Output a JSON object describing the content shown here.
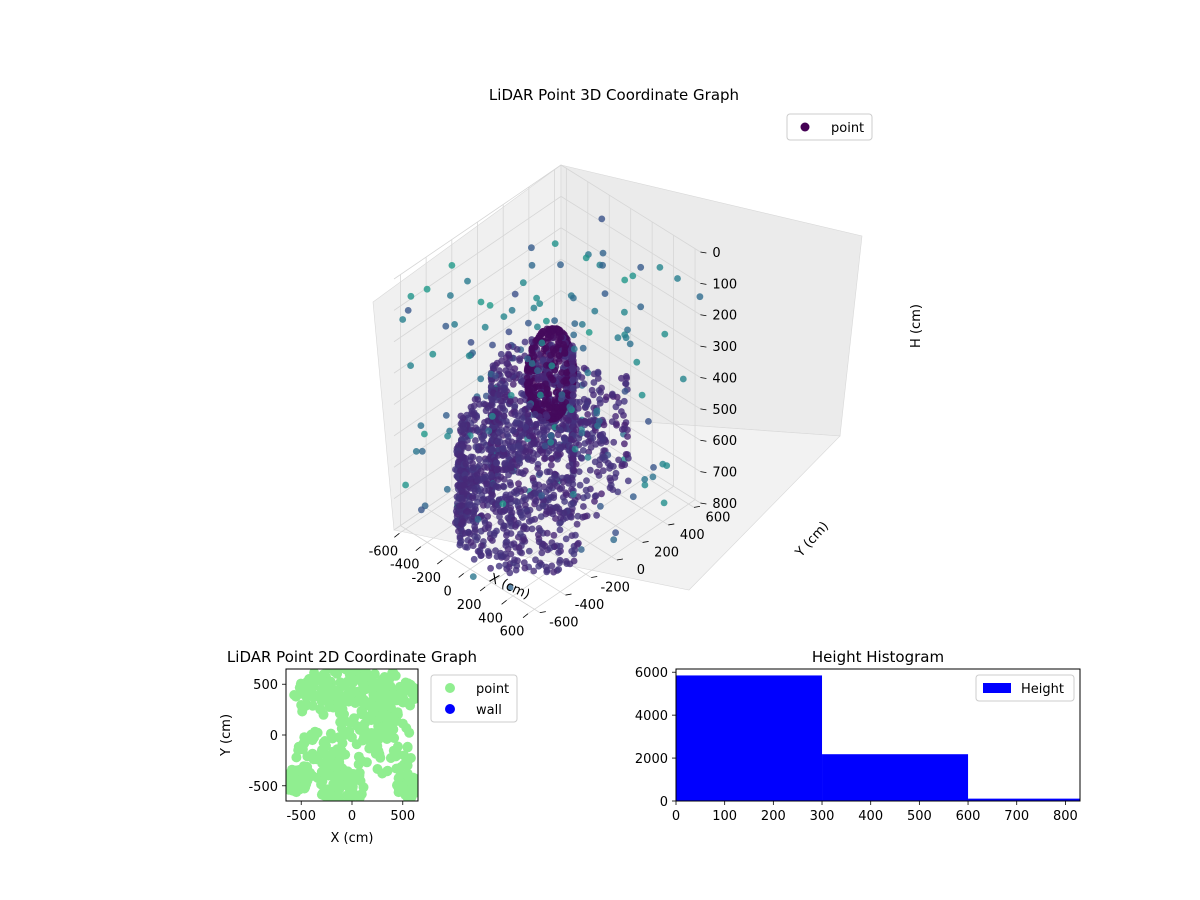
{
  "chart_data": [
    {
      "type": "scatter3d",
      "title": "LiDAR Point 3D Coordinate Graph",
      "xlabel": "X (cm)",
      "ylabel": "Y (cm)",
      "zlabel": "H (cm)",
      "xlim": [
        -650,
        650
      ],
      "ylim": [
        -650,
        650
      ],
      "zlim": [
        0,
        800
      ],
      "z_inverted": true,
      "x_ticks": [
        "-600",
        "-400",
        "-200",
        "0",
        "200",
        "400",
        "600"
      ],
      "y_ticks": [
        "-600",
        "-400",
        "-200",
        "0",
        "200",
        "400",
        "600"
      ],
      "z_ticks": [
        "0",
        "100",
        "200",
        "300",
        "400",
        "500",
        "600",
        "700",
        "800"
      ],
      "grid": true,
      "legend": {
        "position": "top-right",
        "entries": [
          {
            "label": "point",
            "color": "#440154"
          }
        ]
      },
      "colormap": "viridis",
      "series": [
        {
          "name": "point",
          "shapes": [
            {
              "shape": "sphere",
              "center": [
                -150,
                150,
                420
              ],
              "radius": 140
            },
            {
              "shape": "ring",
              "center": [
                0,
                0,
                0
              ],
              "radius": 550,
              "z_range": [
                500,
                800
              ]
            },
            {
              "shape": "spiral-band",
              "center": [
                0,
                0,
                0
              ],
              "radius_range": [
                150,
                500
              ],
              "z_range": [
                300,
                700
              ]
            },
            {
              "shape": "scattered",
              "count": 160,
              "z_range": [
                0,
                800
              ]
            }
          ]
        }
      ]
    },
    {
      "type": "scatter",
      "title": "LiDAR Point 2D Coordinate Graph",
      "xlabel": "X (cm)",
      "ylabel": "Y (cm)",
      "xlim": [
        -650,
        650
      ],
      "ylim": [
        -650,
        650
      ],
      "x_ticks": [
        "-500",
        "0",
        "500"
      ],
      "y_ticks": [
        "-500",
        "0",
        "500"
      ],
      "legend": {
        "position": "outside-right",
        "entries": [
          {
            "label": "point",
            "color": "#90ee90"
          },
          {
            "label": "wall",
            "color": "#0000ff"
          }
        ]
      },
      "series": [
        {
          "name": "point",
          "color": "#90ee90",
          "description_points": 600
        },
        {
          "name": "wall",
          "color": "#0000ff",
          "description_points": 0
        }
      ]
    },
    {
      "type": "bar",
      "title": "Height Histogram",
      "xlabel": "",
      "ylabel": "",
      "xlim": [
        0,
        830
      ],
      "ylim": [
        0,
        6150
      ],
      "x_ticks": [
        "0",
        "100",
        "200",
        "300",
        "400",
        "500",
        "600",
        "700",
        "800"
      ],
      "y_ticks": [
        "0",
        "2000",
        "4000",
        "6000"
      ],
      "legend": {
        "position": "top-right",
        "entries": [
          {
            "label": "Height",
            "color": "#0000ff"
          }
        ]
      },
      "bins": [
        {
          "from": 0,
          "to": 300,
          "count": 5850
        },
        {
          "from": 300,
          "to": 600,
          "count": 2180
        },
        {
          "from": 600,
          "to": 830,
          "count": 110
        }
      ]
    }
  ]
}
